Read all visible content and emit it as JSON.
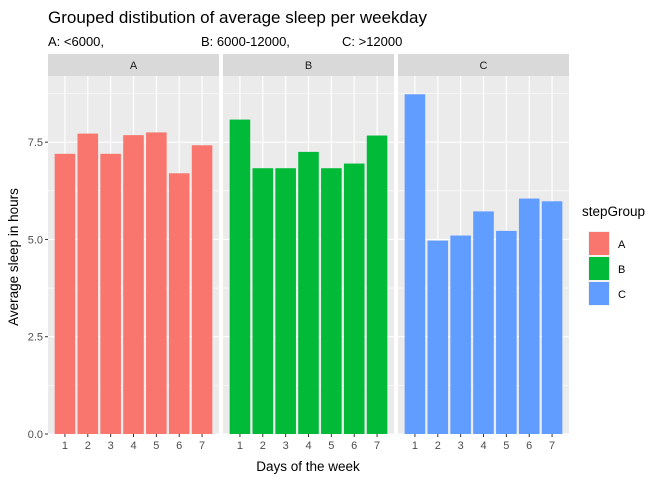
{
  "chart_data": {
    "type": "bar",
    "title": "Grouped distibution of average sleep per weekday",
    "subtitle": {
      "a": "A: <6000,",
      "b": "B: 6000-12000,",
      "c": "C: >12000"
    },
    "xlabel": "Days of the week",
    "ylabel": "Average sleep in hours",
    "categories": [
      "1",
      "2",
      "3",
      "4",
      "5",
      "6",
      "7"
    ],
    "ylim": [
      0,
      9.2
    ],
    "yticks": [
      0.0,
      2.5,
      5.0,
      7.5
    ],
    "ytick_labels": [
      "0.0",
      "2.5",
      "5.0",
      "7.5"
    ],
    "facets": [
      "A",
      "B",
      "C"
    ],
    "series": [
      {
        "name": "A",
        "color": "#F8766D",
        "values": [
          7.2,
          7.72,
          7.2,
          7.68,
          7.75,
          6.7,
          7.42
        ]
      },
      {
        "name": "B",
        "color": "#00BA38",
        "values": [
          8.08,
          6.83,
          6.83,
          7.25,
          6.83,
          6.95,
          7.67
        ]
      },
      {
        "name": "C",
        "color": "#619CFF",
        "values": [
          8.73,
          4.97,
          5.1,
          5.72,
          5.22,
          6.05,
          5.98
        ]
      }
    ],
    "legend": {
      "title": "stepGroup",
      "position": "right"
    },
    "grid": true,
    "panel_background": "#EBEBEB",
    "strip_background": "#D9D9D9"
  }
}
